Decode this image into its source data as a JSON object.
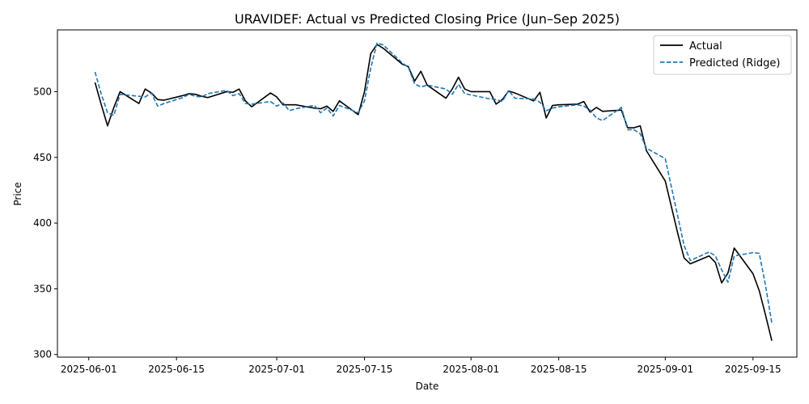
{
  "chart_data": {
    "type": "line",
    "title": "URAVIDEF: Actual vs Predicted Closing Price (Jun–Sep 2025)",
    "xlabel": "Date",
    "ylabel": "Price",
    "xlim": [
      "2025-05-27",
      "2025-09-22"
    ],
    "ylim": [
      298,
      547
    ],
    "x_ticks": [
      "2025-06-01",
      "2025-06-15",
      "2025-07-01",
      "2025-07-15",
      "2025-08-01",
      "2025-08-15",
      "2025-09-01",
      "2025-09-15"
    ],
    "y_ticks": [
      300,
      350,
      400,
      450,
      500
    ],
    "grid": false,
    "legend": {
      "placement": "top-right"
    },
    "series": [
      {
        "name": "Actual",
        "color": "#000000",
        "style": "solid",
        "points": [
          [
            "2025-06-02",
            507
          ],
          [
            "2025-06-03",
            490
          ],
          [
            "2025-06-04",
            474
          ],
          [
            "2025-06-05",
            488
          ],
          [
            "2025-06-06",
            500
          ],
          [
            "2025-06-09",
            491
          ],
          [
            "2025-06-10",
            502
          ],
          [
            "2025-06-11",
            499
          ],
          [
            "2025-06-12",
            494
          ],
          [
            "2025-06-13",
            493.5
          ],
          [
            "2025-06-16",
            497
          ],
          [
            "2025-06-17",
            498.5
          ],
          [
            "2025-06-18",
            498
          ],
          [
            "2025-06-19",
            496.5
          ],
          [
            "2025-06-20",
            495.5
          ],
          [
            "2025-06-23",
            500
          ],
          [
            "2025-06-24",
            499.5
          ],
          [
            "2025-06-25",
            502
          ],
          [
            "2025-06-26",
            493
          ],
          [
            "2025-06-27",
            488.5
          ],
          [
            "2025-06-30",
            499
          ],
          [
            "2025-07-01",
            496
          ],
          [
            "2025-07-02",
            490
          ],
          [
            "2025-07-03",
            490
          ],
          [
            "2025-07-04",
            490
          ],
          [
            "2025-07-07",
            487.5
          ],
          [
            "2025-07-08",
            487
          ],
          [
            "2025-07-09",
            489
          ],
          [
            "2025-07-10",
            485
          ],
          [
            "2025-07-11",
            493
          ],
          [
            "2025-07-14",
            482.5
          ],
          [
            "2025-07-15",
            500
          ],
          [
            "2025-07-16",
            529
          ],
          [
            "2025-07-17",
            536
          ],
          [
            "2025-07-18",
            533
          ],
          [
            "2025-07-21",
            521
          ],
          [
            "2025-07-22",
            519
          ],
          [
            "2025-07-23",
            508
          ],
          [
            "2025-07-24",
            515.5
          ],
          [
            "2025-07-25",
            505
          ],
          [
            "2025-07-28",
            495
          ],
          [
            "2025-07-29",
            502
          ],
          [
            "2025-07-30",
            511
          ],
          [
            "2025-07-31",
            502
          ],
          [
            "2025-08-01",
            500
          ],
          [
            "2025-08-04",
            500
          ],
          [
            "2025-08-05",
            490.5
          ],
          [
            "2025-08-06",
            494
          ],
          [
            "2025-08-07",
            500.5
          ],
          [
            "2025-08-08",
            499
          ],
          [
            "2025-08-11",
            493
          ],
          [
            "2025-08-12",
            499.5
          ],
          [
            "2025-08-13",
            480
          ],
          [
            "2025-08-14",
            489.5
          ],
          [
            "2025-08-15",
            490
          ],
          [
            "2025-08-18",
            490.5
          ],
          [
            "2025-08-19",
            492.5
          ],
          [
            "2025-08-20",
            484.5
          ],
          [
            "2025-08-21",
            488
          ],
          [
            "2025-08-22",
            485
          ],
          [
            "2025-08-25",
            486
          ],
          [
            "2025-08-26",
            472.5
          ],
          [
            "2025-08-27",
            472.5
          ],
          [
            "2025-08-28",
            474
          ],
          [
            "2025-08-29",
            455
          ],
          [
            "2025-09-01",
            432
          ],
          [
            "2025-09-02",
            412
          ],
          [
            "2025-09-03",
            392
          ],
          [
            "2025-09-04",
            373.5
          ],
          [
            "2025-09-05",
            369
          ],
          [
            "2025-09-08",
            375
          ],
          [
            "2025-09-09",
            370
          ],
          [
            "2025-09-10",
            354.5
          ],
          [
            "2025-09-11",
            362
          ],
          [
            "2025-09-12",
            381
          ],
          [
            "2025-09-15",
            361.5
          ],
          [
            "2025-09-16",
            348.5
          ],
          [
            "2025-09-17",
            330
          ],
          [
            "2025-09-18",
            310.5
          ]
        ]
      },
      {
        "name": "Predicted (Ridge)",
        "color": "#1f77b4",
        "style": "dashed",
        "points": [
          [
            "2025-06-02",
            515
          ],
          [
            "2025-06-03",
            498
          ],
          [
            "2025-06-04",
            484
          ],
          [
            "2025-06-05",
            482
          ],
          [
            "2025-06-06",
            498
          ],
          [
            "2025-06-09",
            496.5
          ],
          [
            "2025-06-10",
            496
          ],
          [
            "2025-06-11",
            499
          ],
          [
            "2025-06-12",
            489
          ],
          [
            "2025-06-13",
            491
          ],
          [
            "2025-06-16",
            495.5
          ],
          [
            "2025-06-17",
            498
          ],
          [
            "2025-06-18",
            496.5
          ],
          [
            "2025-06-19",
            496
          ],
          [
            "2025-06-20",
            498.5
          ],
          [
            "2025-06-23",
            501
          ],
          [
            "2025-06-24",
            497
          ],
          [
            "2025-06-25",
            498.5
          ],
          [
            "2025-06-26",
            491
          ],
          [
            "2025-06-27",
            490.5
          ],
          [
            "2025-06-30",
            492.5
          ],
          [
            "2025-07-01",
            489
          ],
          [
            "2025-07-02",
            491.5
          ],
          [
            "2025-07-03",
            485.5
          ],
          [
            "2025-07-04",
            487
          ],
          [
            "2025-07-07",
            489.5
          ],
          [
            "2025-07-08",
            484
          ],
          [
            "2025-07-09",
            487.5
          ],
          [
            "2025-07-10",
            481.5
          ],
          [
            "2025-07-11",
            489.5
          ],
          [
            "2025-07-14",
            484
          ],
          [
            "2025-07-15",
            493
          ],
          [
            "2025-07-16",
            518
          ],
          [
            "2025-07-17",
            537
          ],
          [
            "2025-07-18",
            535.5
          ],
          [
            "2025-07-21",
            522
          ],
          [
            "2025-07-22",
            518.5
          ],
          [
            "2025-07-23",
            506
          ],
          [
            "2025-07-24",
            503.5
          ],
          [
            "2025-07-25",
            505
          ],
          [
            "2025-07-28",
            502
          ],
          [
            "2025-07-29",
            498
          ],
          [
            "2025-07-30",
            505.5
          ],
          [
            "2025-07-31",
            498.5
          ],
          [
            "2025-08-01",
            497.5
          ],
          [
            "2025-08-04",
            494.5
          ],
          [
            "2025-08-05",
            494
          ],
          [
            "2025-08-06",
            492.5
          ],
          [
            "2025-08-07",
            501
          ],
          [
            "2025-08-08",
            495
          ],
          [
            "2025-08-11",
            494.5
          ],
          [
            "2025-08-12",
            492
          ],
          [
            "2025-08-13",
            485.5
          ],
          [
            "2025-08-14",
            487.5
          ],
          [
            "2025-08-15",
            488.5
          ],
          [
            "2025-08-18",
            490
          ],
          [
            "2025-08-19",
            489
          ],
          [
            "2025-08-20",
            486
          ],
          [
            "2025-08-21",
            480
          ],
          [
            "2025-08-22",
            478
          ],
          [
            "2025-08-25",
            488
          ],
          [
            "2025-08-26",
            471
          ],
          [
            "2025-08-27",
            471
          ],
          [
            "2025-08-28",
            468
          ],
          [
            "2025-08-29",
            457
          ],
          [
            "2025-09-01",
            449
          ],
          [
            "2025-09-02",
            427
          ],
          [
            "2025-09-03",
            405
          ],
          [
            "2025-09-04",
            383
          ],
          [
            "2025-09-05",
            371.5
          ],
          [
            "2025-09-08",
            378
          ],
          [
            "2025-09-09",
            375
          ],
          [
            "2025-09-10",
            364.5
          ],
          [
            "2025-09-11",
            355
          ],
          [
            "2025-09-12",
            375
          ],
          [
            "2025-09-15",
            377.5
          ],
          [
            "2025-09-16",
            377
          ],
          [
            "2025-09-17",
            352.5
          ],
          [
            "2025-09-18",
            324
          ]
        ]
      }
    ]
  }
}
